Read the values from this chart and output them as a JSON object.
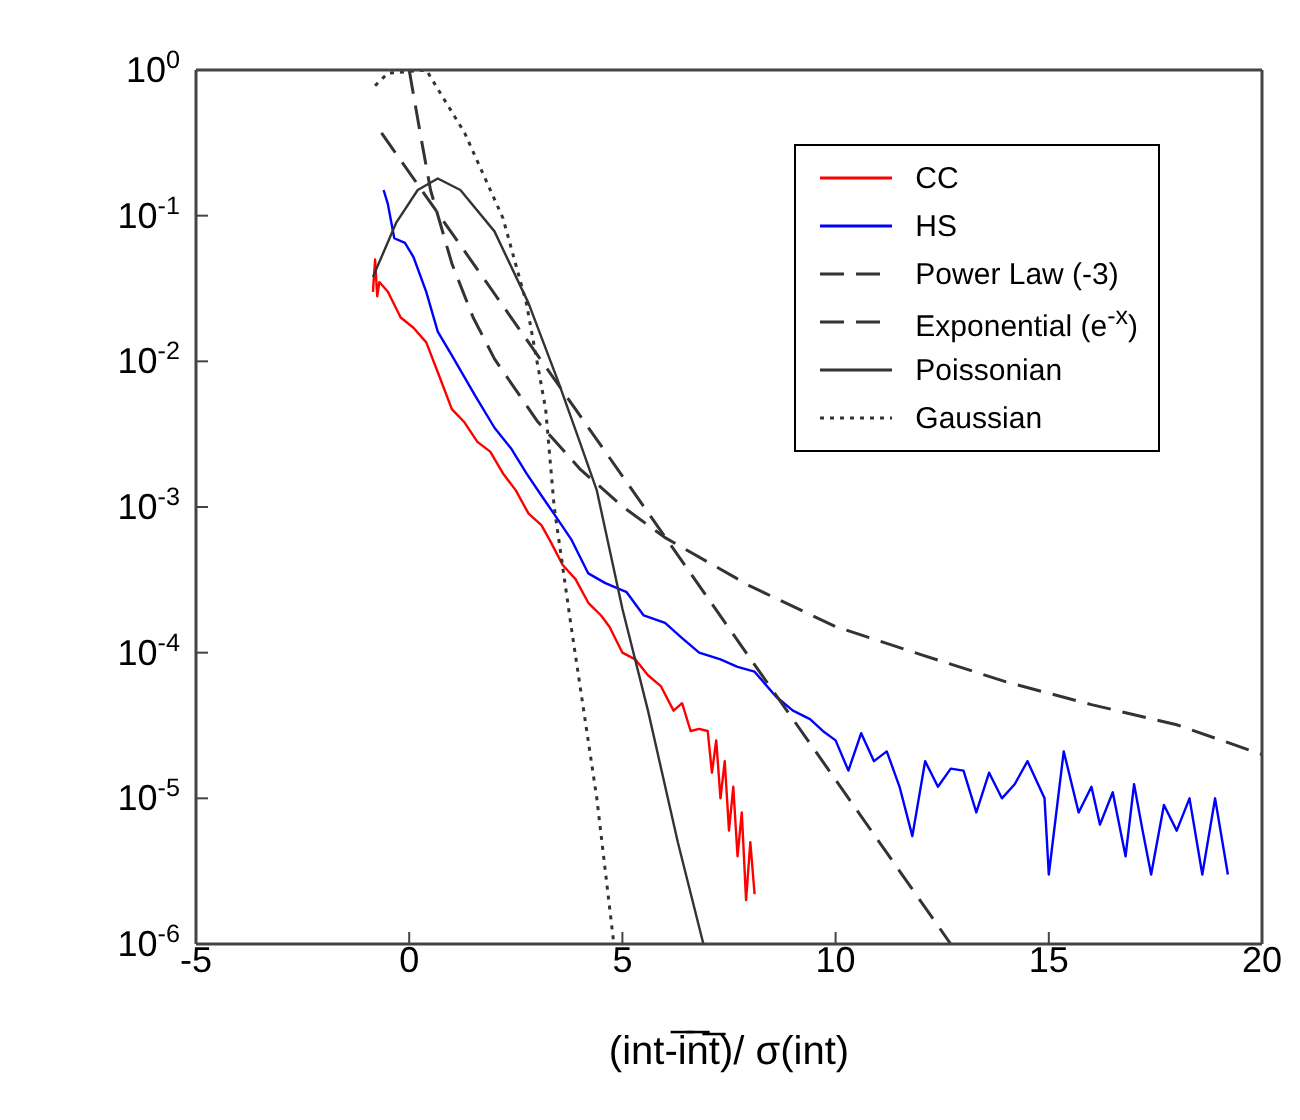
{
  "chart_data": {
    "type": "line",
    "xlabel": "(int-i̅n̅t̅)/ σ(int)",
    "log": "y",
    "legend": "top right",
    "marker": "none",
    "xlim": [
      -5,
      20
    ],
    "xticks": [
      -5,
      0,
      5,
      10,
      15,
      20
    ],
    "ylim": [
      1e-06,
      1
    ],
    "yticks": [
      {
        "value": 1,
        "label": "10$^{0}$"
      },
      {
        "value": 0.1,
        "label": "10$^{-1}$"
      },
      {
        "value": 0.01,
        "label": "10$^{-2}$"
      },
      {
        "value": 0.001,
        "label": "10$^{-3}$"
      },
      {
        "value": 0.0001,
        "label": "10$^{-4}$"
      },
      {
        "value": 1e-05,
        "label": "10$^{-5}$"
      },
      {
        "value": 1e-06,
        "label": "10$^{-6}$"
      }
    ],
    "series": [
      {
        "name": "CC",
        "color": "#ff0000",
        "line_style": "solid",
        "x": [
          -0.85,
          -0.8,
          -0.75,
          -0.7,
          -0.5,
          -0.2,
          0.1,
          0.4,
          0.7,
          1.0,
          1.3,
          1.6,
          1.9,
          2.2,
          2.5,
          2.8,
          3.1,
          3.3,
          3.6,
          3.9,
          4.2,
          4.5,
          4.7,
          5.0,
          5.3,
          5.6,
          5.9,
          6.2,
          6.4,
          6.6,
          6.8,
          7.0,
          7.1,
          7.2,
          7.3,
          7.4,
          7.5,
          7.6,
          7.7,
          7.8,
          7.9,
          8.0,
          8.1
        ],
        "values": [
          0.03,
          0.05,
          0.028,
          0.035,
          0.03,
          0.02,
          0.017,
          0.0135,
          0.008,
          0.0047,
          0.0038,
          0.0028,
          0.0024,
          0.0017,
          0.0013,
          0.0009,
          0.00075,
          0.00059,
          0.0004,
          0.00032,
          0.00022,
          0.00018,
          0.00015,
          0.0001,
          9e-05,
          7e-05,
          5.9e-05,
          4e-05,
          4.5e-05,
          2.9e-05,
          3e-05,
          2.9e-05,
          1.5e-05,
          2.5e-05,
          1e-05,
          1.8e-05,
          6e-06,
          1.2e-05,
          4e-06,
          8e-06,
          2e-06,
          5e-06,
          2.2e-06
        ]
      },
      {
        "name": "HS",
        "color": "#0000ff",
        "line_style": "solid",
        "x": [
          -0.6,
          -0.5,
          -0.35,
          -0.1,
          0.1,
          0.4,
          0.67,
          1.0,
          1.55,
          2.0,
          2.4,
          2.75,
          3.1,
          3.5,
          3.8,
          4.2,
          4.6,
          5.1,
          5.5,
          6.0,
          6.4,
          6.8,
          7.3,
          7.7,
          8.1,
          8.6,
          9.0,
          9.4,
          9.7,
          10.0,
          10.3,
          10.6,
          10.9,
          11.2,
          11.5,
          11.8,
          12.1,
          12.4,
          12.7,
          13.0,
          13.3,
          13.6,
          13.9,
          14.2,
          14.5,
          14.9,
          15.0,
          15.35,
          15.7,
          16.0,
          16.2,
          16.5,
          16.8,
          17.0,
          17.2,
          17.4,
          17.7,
          18.0,
          18.3,
          18.6,
          18.9,
          19.2
        ],
        "values": [
          0.15,
          0.12,
          0.07,
          0.065,
          0.052,
          0.03,
          0.016,
          0.011,
          0.0058,
          0.0035,
          0.0025,
          0.0017,
          0.0012,
          0.00081,
          0.0006,
          0.00035,
          0.0003,
          0.00026,
          0.00018,
          0.00016,
          0.000126,
          0.0001,
          9e-05,
          8e-05,
          7.4e-05,
          5e-05,
          4e-05,
          3.5e-05,
          2.9e-05,
          2.5e-05,
          1.55e-05,
          2.8e-05,
          1.8e-05,
          2.1e-05,
          1.2e-05,
          5.5e-06,
          1.8e-05,
          1.2e-05,
          1.6e-05,
          1.55e-05,
          8e-06,
          1.5e-05,
          1e-05,
          1.25e-05,
          1.8e-05,
          1e-05,
          3e-06,
          2.1e-05,
          8e-06,
          1.2e-05,
          6.6e-06,
          1.1e-05,
          4e-06,
          1.25e-05,
          6e-06,
          3e-06,
          9e-06,
          6e-06,
          1e-05,
          3e-06,
          1e-05,
          3e-06
        ]
      },
      {
        "name": "Power Law (-3)",
        "color": "#333333",
        "line_style": "dashed",
        "x": [
          0,
          0.25,
          0.5,
          1,
          1.5,
          2,
          3,
          4,
          5,
          6,
          8,
          10,
          12,
          14,
          16,
          18,
          20
        ],
        "values": [
          1,
          0.38,
          0.15,
          0.047,
          0.02,
          0.0104,
          0.0039,
          0.00183,
          0.00101,
          0.000616,
          0.000286,
          0.000151,
          9.7e-05,
          6.3e-05,
          4.4e-05,
          3.2e-05,
          2e-05
        ]
      },
      {
        "name": "Exponential (e$^{-x}$)",
        "color": "#333333",
        "line_style": "dashed",
        "x": [
          -0.65,
          2,
          5,
          8,
          10,
          12.7
        ],
        "values": [
          0.37,
          0.0291,
          0.00163,
          9.1e-05,
          1.34e-05,
          1e-06
        ]
      },
      {
        "name": "Poissonian",
        "color": "#333333",
        "line_style": "solid",
        "x": [
          -0.85,
          -0.3,
          0.2,
          0.67,
          1.2,
          2.0,
          2.8,
          3.5,
          4.0,
          4.4,
          5.0,
          5.6,
          6.3,
          6.9
        ],
        "values": [
          0.038,
          0.09,
          0.15,
          0.18,
          0.15,
          0.078,
          0.025,
          0.0072,
          0.0028,
          0.0013,
          0.0002,
          4e-05,
          5e-06,
          1e-06
        ]
      },
      {
        "name": "Gaussian",
        "color": "#333333",
        "line_style": "dotted",
        "x": [
          -0.8,
          -0.5,
          0.4,
          1.3,
          2.2,
          2.75,
          3.2,
          3.4,
          3.8,
          4.4,
          4.8
        ],
        "values": [
          0.78,
          0.95,
          1,
          0.37,
          0.096,
          0.025,
          0.0047,
          0.001,
          0.00015,
          1e-05,
          1e-06
        ]
      }
    ]
  }
}
